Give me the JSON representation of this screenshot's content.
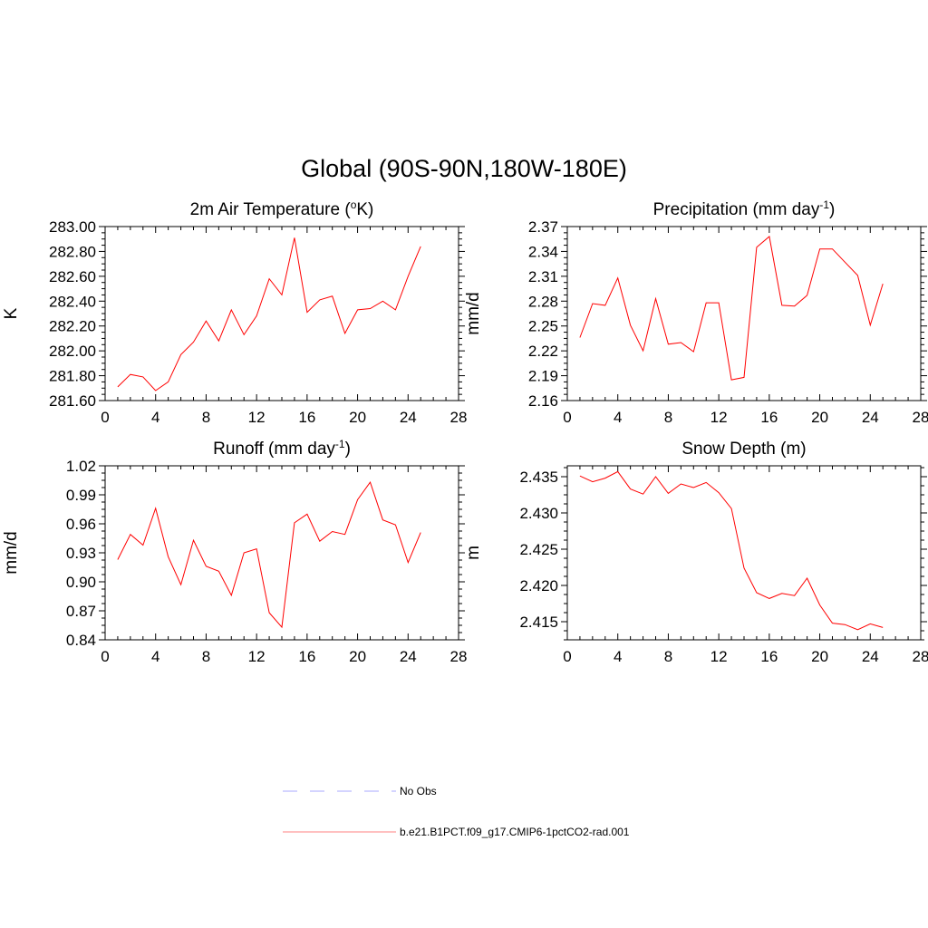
{
  "title": "Global (90S-90N,180W-180E)",
  "chart_data": [
    {
      "type": "line",
      "title": "2m Air Temperature (",
      "title_sup": "o",
      "title_end": "K)",
      "ylabel": "K",
      "xlim": [
        0,
        28
      ],
      "xticks": [
        "0",
        "4",
        "8",
        "12",
        "16",
        "20",
        "24",
        "28"
      ],
      "ylim": [
        281.6,
        283.0
      ],
      "yticks": [
        "281.60",
        "281.80",
        "282.00",
        "282.20",
        "282.40",
        "282.60",
        "282.80",
        "283.00"
      ],
      "series": [
        {
          "color": "#ff0000",
          "x": [
            1,
            2,
            3,
            4,
            5,
            6,
            7,
            8,
            9,
            10,
            11,
            12,
            13,
            14,
            15,
            16,
            17,
            18,
            19,
            20,
            21,
            22,
            23,
            24,
            25
          ],
          "y": [
            281.71,
            281.81,
            281.79,
            281.68,
            281.75,
            281.97,
            282.07,
            282.24,
            282.08,
            282.33,
            282.13,
            282.28,
            282.58,
            282.45,
            282.91,
            282.31,
            282.41,
            282.44,
            282.14,
            282.33,
            282.34,
            282.4,
            282.33,
            282.6,
            282.84
          ]
        }
      ]
    },
    {
      "type": "line",
      "title": "Precipitation (mm day",
      "title_sup": "-1",
      "title_end": ")",
      "ylabel": "mm/d",
      "xlim": [
        0,
        28
      ],
      "xticks": [
        "0",
        "4",
        "8",
        "12",
        "16",
        "20",
        "24",
        "28"
      ],
      "ylim": [
        2.16,
        2.37
      ],
      "yticks": [
        "2.16",
        "2.19",
        "2.22",
        "2.25",
        "2.28",
        "2.31",
        "2.34",
        "2.37"
      ],
      "series": [
        {
          "color": "#ff0000",
          "x": [
            1,
            2,
            3,
            4,
            5,
            6,
            7,
            8,
            9,
            10,
            11,
            12,
            13,
            14,
            15,
            16,
            17,
            18,
            19,
            20,
            21,
            22,
            23,
            24,
            25
          ],
          "y": [
            2.236,
            2.277,
            2.275,
            2.308,
            2.251,
            2.22,
            2.283,
            2.228,
            2.23,
            2.219,
            2.278,
            2.278,
            2.185,
            2.188,
            2.345,
            2.358,
            2.275,
            2.274,
            2.287,
            2.343,
            2.343,
            2.327,
            2.311,
            2.251,
            2.301
          ]
        }
      ]
    },
    {
      "type": "line",
      "title": "Runoff (mm day",
      "title_sup": "-1",
      "title_end": ")",
      "ylabel": "mm/d",
      "xlim": [
        0,
        28
      ],
      "xticks": [
        "0",
        "4",
        "8",
        "12",
        "16",
        "20",
        "24",
        "28"
      ],
      "ylim": [
        0.84,
        1.02
      ],
      "yticks": [
        "0.84",
        "0.87",
        "0.90",
        "0.93",
        "0.96",
        "0.99",
        "1.02"
      ],
      "series": [
        {
          "color": "#ff0000",
          "x": [
            1,
            2,
            3,
            4,
            5,
            6,
            7,
            8,
            9,
            10,
            11,
            12,
            13,
            14,
            15,
            16,
            17,
            18,
            19,
            20,
            21,
            22,
            23,
            24,
            25
          ],
          "y": [
            0.923,
            0.949,
            0.938,
            0.976,
            0.926,
            0.897,
            0.943,
            0.916,
            0.911,
            0.886,
            0.93,
            0.934,
            0.868,
            0.853,
            0.961,
            0.97,
            0.942,
            0.952,
            0.949,
            0.985,
            1.003,
            0.964,
            0.959,
            0.92,
            0.951
          ]
        }
      ]
    },
    {
      "type": "line",
      "title": "Snow Depth (m)",
      "title_sup": "",
      "title_end": "",
      "ylabel": "m",
      "xlim": [
        0,
        28
      ],
      "xticks": [
        "0",
        "4",
        "8",
        "12",
        "16",
        "20",
        "24",
        "28"
      ],
      "ylim": [
        2.4125,
        2.4365
      ],
      "yticks": [
        "2.415",
        "2.420",
        "2.425",
        "2.430",
        "2.435"
      ],
      "ytick_values": [
        2.415,
        2.42,
        2.425,
        2.43,
        2.435
      ],
      "series": [
        {
          "color": "#ff0000",
          "x": [
            1,
            2,
            3,
            4,
            5,
            6,
            7,
            8,
            9,
            10,
            11,
            12,
            13,
            14,
            15,
            16,
            17,
            18,
            19,
            20,
            21,
            22,
            23,
            24,
            25
          ],
          "y": [
            2.4351,
            2.4343,
            2.4348,
            2.4357,
            2.4333,
            2.4326,
            2.435,
            2.4327,
            2.434,
            2.4335,
            2.4342,
            2.4328,
            2.4306,
            2.4224,
            2.419,
            2.4182,
            2.4189,
            2.4186,
            2.421,
            2.4173,
            2.4148,
            2.4146,
            2.4139,
            2.4147,
            2.4142
          ]
        }
      ]
    }
  ],
  "legend": [
    {
      "label": "No Obs",
      "color": "#aaaaff",
      "style": "dashed"
    },
    {
      "label": "b.e21.B1PCT.f09_g17.CMIP6-1pctCO2-rad.001",
      "color": "#ff8080",
      "style": "solid"
    }
  ]
}
